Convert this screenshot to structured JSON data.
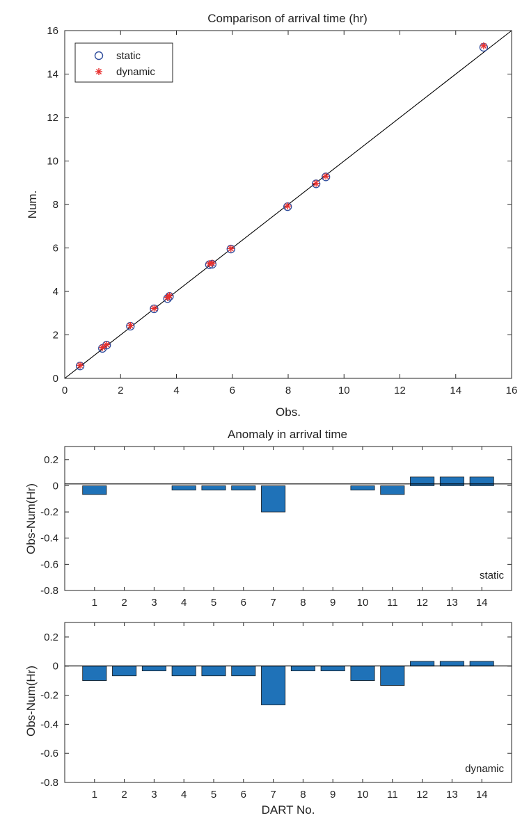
{
  "chart_data": [
    {
      "type": "scatter",
      "title": "Comparison of arrival time (hr)",
      "xlabel": "Obs.",
      "ylabel": "Num.",
      "xlim": [
        0,
        16
      ],
      "ylim": [
        0,
        16
      ],
      "xticks": [
        "0",
        "2",
        "4",
        "6",
        "8",
        "10",
        "12",
        "14",
        "16"
      ],
      "yticks": [
        "0",
        "2",
        "4",
        "6",
        "8",
        "10",
        "12",
        "14",
        "16"
      ],
      "reference_line": {
        "from": [
          0,
          0
        ],
        "to": [
          16,
          16
        ],
        "color": "#000000"
      },
      "legend": {
        "position": "top-left",
        "entries": [
          "static",
          "dynamic"
        ]
      },
      "series": [
        {
          "name": "static",
          "marker": "circle",
          "color": "#2f4d9c",
          "x": [
            0.55,
            1.35,
            1.5,
            2.35,
            3.2,
            3.68,
            3.75,
            5.18,
            5.28,
            5.95,
            7.98,
            9.0,
            9.35,
            15.0
          ],
          "y": [
            0.57,
            1.38,
            1.53,
            2.4,
            3.2,
            3.67,
            3.77,
            5.23,
            5.25,
            5.95,
            7.9,
            8.95,
            9.27,
            15.23
          ]
        },
        {
          "name": "dynamic",
          "marker": "asterisk",
          "color": "#e8302f",
          "x": [
            0.55,
            1.35,
            1.5,
            2.35,
            3.2,
            3.68,
            3.75,
            5.18,
            5.28,
            5.95,
            7.98,
            9.0,
            9.35,
            15.0
          ],
          "y": [
            0.6,
            1.42,
            1.55,
            2.43,
            3.22,
            3.72,
            3.8,
            5.27,
            5.3,
            5.97,
            7.93,
            8.97,
            9.3,
            15.3
          ]
        }
      ]
    },
    {
      "type": "bar",
      "title": "Anomaly in arrival time",
      "ylabel": "Obs-Num(Hr)",
      "panel_label": "static",
      "categories": [
        "1",
        "2",
        "3",
        "4",
        "5",
        "6",
        "7",
        "8",
        "9",
        "10",
        "11",
        "12",
        "13",
        "14"
      ],
      "values": [
        -0.067,
        0,
        0,
        -0.033,
        -0.033,
        -0.033,
        -0.2,
        0,
        0,
        -0.033,
        -0.067,
        0.067,
        0.067,
        0.067
      ],
      "ylim": [
        -0.8,
        0.3
      ],
      "yticks": [
        "0.2",
        "0",
        "-0.2",
        "-0.4",
        "-0.6",
        "-0.8"
      ],
      "color": "#1f72b8"
    },
    {
      "type": "bar",
      "ylabel": "Obs-Num(Hr)",
      "xlabel": "DART No.",
      "panel_label": "dynamic",
      "categories": [
        "1",
        "2",
        "3",
        "4",
        "5",
        "6",
        "7",
        "8",
        "9",
        "10",
        "11",
        "12",
        "13",
        "14"
      ],
      "values": [
        -0.1,
        -0.067,
        -0.033,
        -0.067,
        -0.067,
        -0.067,
        -0.267,
        -0.033,
        -0.033,
        -0.1,
        -0.133,
        0.033,
        0.033,
        0.033
      ],
      "ylim": [
        -0.8,
        0.3
      ],
      "yticks": [
        "0.2",
        "0",
        "-0.2",
        "-0.4",
        "-0.6",
        "-0.8"
      ],
      "color": "#1f72b8"
    }
  ]
}
